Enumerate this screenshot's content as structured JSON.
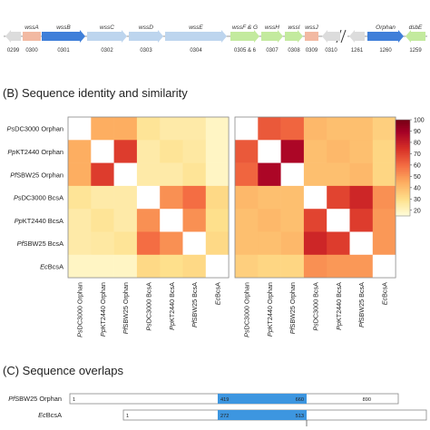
{
  "operon": {
    "genes": [
      {
        "name": "",
        "num": "0299",
        "color": "#dcdcdc"
      },
      {
        "name": "wssA",
        "num": "0300",
        "color": "#f2b9a2"
      },
      {
        "name": "wssB",
        "num": "0301",
        "color": "#3f7fd9"
      },
      {
        "name": "wssC",
        "num": "0302",
        "color": "#bdd5ee"
      },
      {
        "name": "wssD",
        "num": "0303",
        "color": "#bdd5ee"
      },
      {
        "name": "wssE",
        "num": "0304",
        "color": "#bdd5ee"
      },
      {
        "name": "wssF & G",
        "num": "0305 & 6",
        "color": "#c3ea9e"
      },
      {
        "name": "wssH",
        "num": "0307",
        "color": "#c3ea9e"
      },
      {
        "name": "wssI",
        "num": "0308",
        "color": "#c3ea9e"
      },
      {
        "name": "wssJ",
        "num": "0309",
        "color": "#f2b9a2"
      },
      {
        "name": "",
        "num": "0310",
        "color": "#dcdcdc"
      },
      {
        "name": "",
        "num": "1261",
        "color": "#dcdcdc"
      },
      {
        "name": "Orphan",
        "num": "1260",
        "color": "#3f7fd9"
      },
      {
        "name": "dsbE",
        "num": "1259",
        "color": "#c3ea9e"
      }
    ]
  },
  "section_b": {
    "title": "(B) Sequence identity and similarity"
  },
  "section_c": {
    "title": "(C) Sequence overlaps"
  },
  "heatmap": {
    "rows": [
      {
        "species": "Ps",
        "rest": "DC3000 Orphan"
      },
      {
        "species": "Pp",
        "rest": "KT2440 Orphan"
      },
      {
        "species": "Pf",
        "rest": "SBW25 Orphan"
      },
      {
        "species": "Ps",
        "rest": "DC3000 BcsA"
      },
      {
        "species": "Pp",
        "rest": "KT2440 BcsA"
      },
      {
        "species": "Pf",
        "rest": "SBW25 BcsA"
      },
      {
        "species": "Ec",
        "rest": "BcsA"
      }
    ],
    "colorbar_ticks": [
      "100",
      "90",
      "80",
      "70",
      "60",
      "50",
      "40",
      "30",
      "20"
    ],
    "colorbar_range": [
      15,
      100
    ],
    "identity": [
      [
        100,
        45,
        45,
        28,
        25,
        25,
        20
      ],
      [
        45,
        100,
        72,
        25,
        28,
        26,
        20
      ],
      [
        45,
        72,
        100,
        25,
        25,
        28,
        20
      ],
      [
        28,
        25,
        25,
        100,
        52,
        60,
        32
      ],
      [
        25,
        28,
        25,
        52,
        100,
        52,
        30
      ],
      [
        25,
        26,
        28,
        60,
        52,
        100,
        32
      ],
      [
        20,
        20,
        20,
        32,
        30,
        32,
        100
      ]
    ],
    "similarity": [
      [
        100,
        65,
        62,
        42,
        40,
        40,
        35
      ],
      [
        65,
        100,
        88,
        40,
        42,
        40,
        33
      ],
      [
        62,
        88,
        100,
        40,
        40,
        42,
        33
      ],
      [
        42,
        40,
        40,
        100,
        70,
        78,
        52
      ],
      [
        40,
        42,
        40,
        70,
        100,
        72,
        50
      ],
      [
        40,
        40,
        42,
        78,
        72,
        100,
        50
      ],
      [
        35,
        33,
        33,
        52,
        50,
        50,
        100
      ]
    ]
  },
  "overlaps": [
    {
      "species": "Pf",
      "rest": "SBW25 Orphan",
      "start": "1",
      "hl_start": "419",
      "hl_end": "660",
      "end": "890"
    },
    {
      "species": "Ec",
      "rest": "BcsA",
      "start": "1",
      "hl_start": "272",
      "hl_end": "513",
      "end": "872"
    }
  ]
}
